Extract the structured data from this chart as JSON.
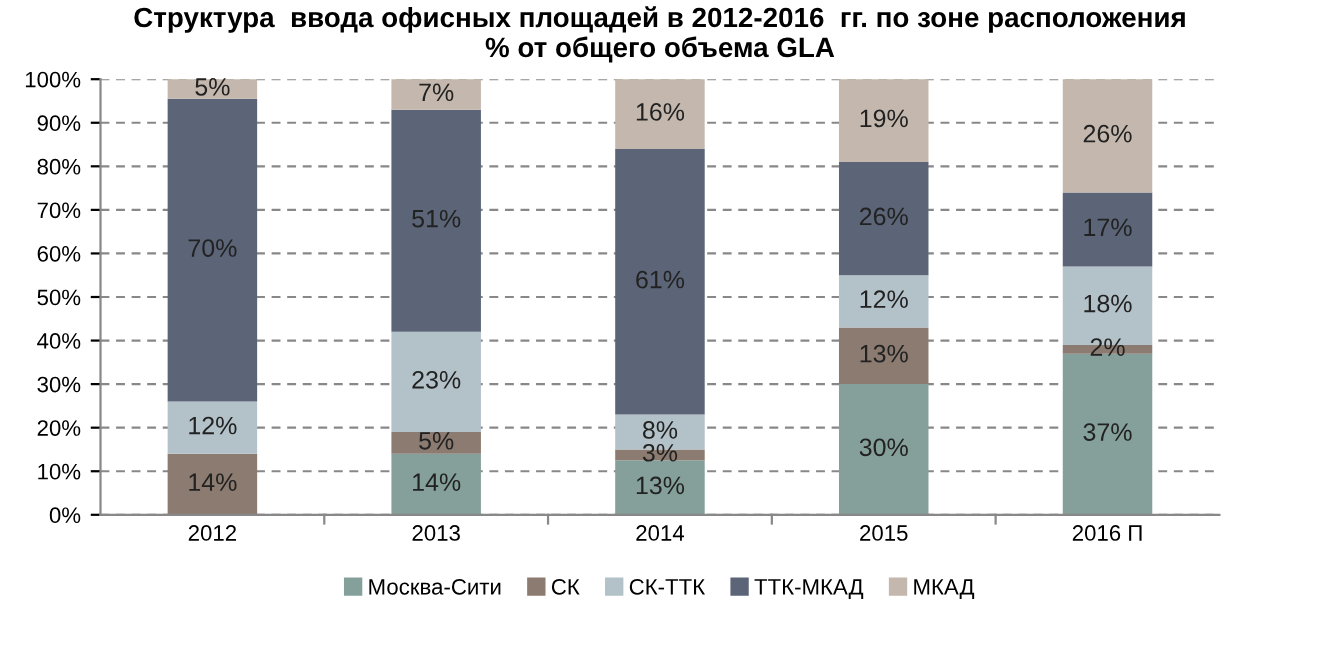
{
  "chart_data": {
    "type": "bar",
    "stacked": true,
    "title": "Структура  ввода офисных площадей в 2012-2016  гг. по зоне расположения\n% от общего объема GLA",
    "categories": [
      "2012",
      "2013",
      "2014",
      "2015",
      "2016 П"
    ],
    "series": [
      {
        "name": "Москва-Сити",
        "color": "#85a09a",
        "values": [
          0,
          14,
          12.5,
          30,
          37
        ],
        "value_labels": [
          null,
          "14%",
          "13%",
          "30%",
          "37%"
        ]
      },
      {
        "name": "СК",
        "color": "#8b7b70",
        "values": [
          14,
          5,
          2.5,
          13,
          2
        ],
        "value_labels": [
          "14%",
          "5%",
          "3%",
          "13%",
          "2%"
        ]
      },
      {
        "name": "СК-ТТК",
        "color": "#b3c1c8",
        "values": [
          12,
          23,
          8,
          12,
          18
        ],
        "value_labels": [
          "12%",
          "23%",
          "8%",
          "12%",
          "18%"
        ]
      },
      {
        "name": "ТТК-МКАД",
        "color": "#5b6577",
        "values": [
          69.5,
          51,
          61,
          26,
          17
        ],
        "value_labels": [
          "70%",
          "51%",
          "61%",
          "26%",
          "17%"
        ]
      },
      {
        "name": "МКАД",
        "color": "#c4b8ae",
        "values": [
          4.5,
          7,
          16,
          19,
          26
        ],
        "value_labels": [
          "5%",
          "7%",
          "16%",
          "19%",
          "26%"
        ]
      }
    ],
    "ylim": [
      0,
      100
    ],
    "yticks": [
      {
        "value": 0,
        "label": "0%"
      },
      {
        "value": 10,
        "label": "10%"
      },
      {
        "value": 20,
        "label": "20%"
      },
      {
        "value": 30,
        "label": "30%"
      },
      {
        "value": 40,
        "label": "40%"
      },
      {
        "value": 50,
        "label": "50%"
      },
      {
        "value": 60,
        "label": "60%"
      },
      {
        "value": 70,
        "label": "70%"
      },
      {
        "value": 80,
        "label": "80%"
      },
      {
        "value": 90,
        "label": "90%"
      },
      {
        "value": 100,
        "label": "100%"
      }
    ],
    "grid": "y",
    "legend": "bottom"
  }
}
